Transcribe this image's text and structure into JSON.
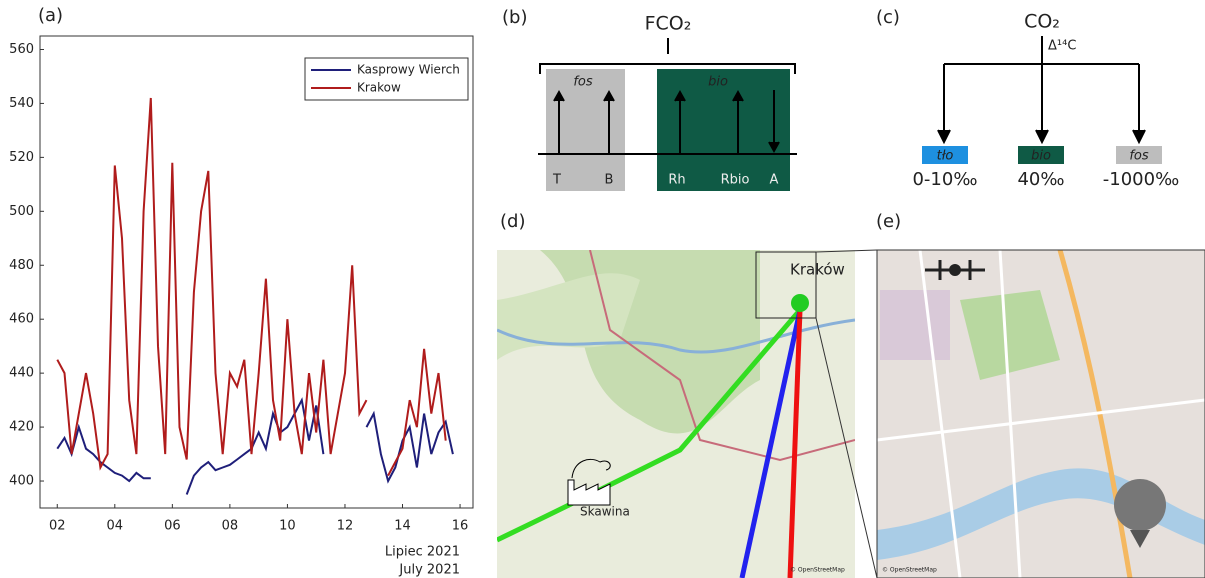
{
  "chart_data": {
    "type": "line",
    "panel_label": "(a)",
    "x": [
      2,
      2.25,
      2.5,
      2.75,
      3,
      3.25,
      3.5,
      3.75,
      4,
      4.25,
      4.5,
      4.75,
      5,
      5.25,
      5.5,
      5.75,
      6,
      6.25,
      6.5,
      6.75,
      7,
      7.25,
      7.5,
      7.75,
      8,
      8.25,
      8.5,
      8.75,
      9,
      9.25,
      9.5,
      9.75,
      10,
      10.25,
      10.5,
      10.75,
      11,
      11.25,
      11.5,
      11.75,
      12,
      12.25,
      12.5,
      12.75,
      13,
      13.25,
      13.5,
      13.75,
      14,
      14.25,
      14.5,
      14.75,
      15,
      15.25,
      15.5,
      15.75,
      16
    ],
    "series": [
      {
        "name": "Kasprowy Wierch",
        "color": "#1f1f7a",
        "values": [
          412,
          416,
          410,
          420,
          412,
          410,
          407,
          405,
          403,
          402,
          400,
          403,
          401,
          401,
          null,
          null,
          null,
          null,
          395,
          402,
          405,
          407,
          404,
          405,
          406,
          408,
          410,
          412,
          418,
          412,
          425,
          418,
          420,
          425,
          430,
          415,
          428,
          410,
          null,
          null,
          null,
          null,
          null,
          420,
          425,
          410,
          400,
          405,
          415,
          420,
          405,
          425,
          410,
          418,
          422,
          410,
          null
        ]
      },
      {
        "name": "Krakow",
        "color": "#b01c1c",
        "values": [
          445,
          440,
          410,
          425,
          440,
          425,
          405,
          410,
          517,
          490,
          430,
          410,
          500,
          542,
          450,
          410,
          518,
          420,
          408,
          470,
          500,
          515,
          440,
          410,
          440,
          435,
          445,
          410,
          440,
          475,
          430,
          415,
          460,
          425,
          410,
          440,
          418,
          445,
          410,
          425,
          440,
          480,
          425,
          430,
          null,
          null,
          402,
          407,
          412,
          430,
          420,
          449,
          425,
          440,
          415,
          null,
          null
        ]
      }
    ],
    "xlim": [
      1.4,
      16.45
    ],
    "ylim": [
      390,
      565
    ],
    "xticks": [
      {
        "value": 2,
        "label": "02"
      },
      {
        "value": 4,
        "label": "04"
      },
      {
        "value": 6,
        "label": "06"
      },
      {
        "value": 8,
        "label": "08"
      },
      {
        "value": 10,
        "label": "10"
      },
      {
        "value": 12,
        "label": "12"
      },
      {
        "value": 14,
        "label": "14"
      },
      {
        "value": 16,
        "label": "16"
      }
    ],
    "yticks": [
      400,
      420,
      440,
      460,
      480,
      500,
      520,
      540,
      560
    ],
    "x_label": [
      "Lipiec 2021",
      "July 2021"
    ],
    "legend": "top-right",
    "grid": false
  },
  "panel_b": {
    "label": "(b)",
    "title": "FCO₂",
    "groups": [
      "fos",
      "bio"
    ],
    "items": [
      "T",
      "B",
      "Rh",
      "Rbio",
      "A"
    ]
  },
  "panel_c": {
    "label": "(c)",
    "title": "CO₂",
    "branch_label": "Δ¹⁴C",
    "boxes": [
      {
        "name": "tło",
        "value": "0-10‰"
      },
      {
        "name": "bio",
        "value": "40‰"
      },
      {
        "name": "fos",
        "value": "-1000‰"
      }
    ]
  },
  "panel_d": {
    "label": "(d)",
    "city": "Kraków",
    "town": "Skawina",
    "credit": "© OpenStreetMap"
  },
  "panel_e": {
    "label": "(e)",
    "credit": "© OpenStreetMap"
  }
}
